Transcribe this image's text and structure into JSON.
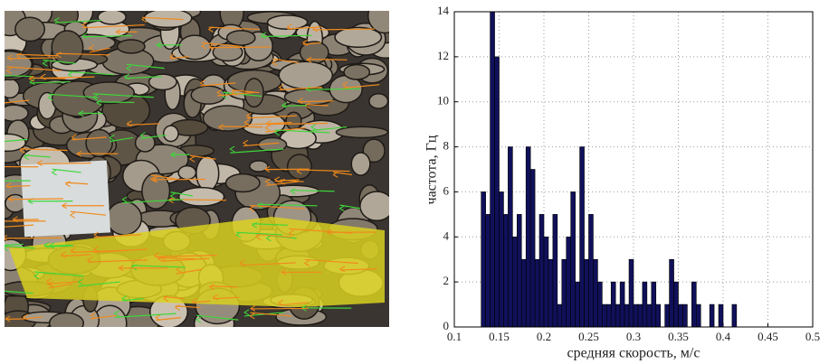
{
  "chart_data": {
    "type": "histogram",
    "xlabel": "средняя скорость, м/с",
    "ylabel": "частота, Гц",
    "color": "#10105a",
    "edgecolor": "#000000",
    "grid": true,
    "bins": [
      0.13,
      0.135,
      0.14,
      0.145,
      0.15,
      0.155,
      0.16,
      0.165,
      0.17,
      0.175,
      0.18,
      0.185,
      0.19,
      0.195,
      0.2,
      0.205,
      0.21,
      0.215,
      0.22,
      0.225,
      0.23,
      0.235,
      0.24,
      0.245,
      0.25,
      0.255,
      0.26,
      0.265,
      0.27,
      0.275,
      0.28,
      0.285,
      0.29,
      0.295,
      0.3,
      0.305,
      0.31,
      0.315,
      0.32,
      0.325,
      0.33,
      0.335,
      0.34,
      0.345,
      0.35,
      0.355,
      0.36,
      0.365,
      0.37,
      0.375,
      0.38,
      0.385,
      0.39,
      0.395,
      0.4,
      0.405,
      0.41,
      0.415
    ],
    "values": [
      6,
      5,
      14,
      12,
      6,
      5,
      8,
      4,
      5,
      3,
      8,
      7,
      3,
      5,
      4,
      3,
      5,
      1,
      3,
      4,
      6,
      2,
      8,
      3,
      5,
      3,
      2,
      1,
      1,
      2,
      1,
      2,
      1,
      3,
      1,
      1,
      2,
      1,
      2,
      1,
      0,
      1,
      3,
      2,
      1,
      1,
      0,
      2,
      1,
      0,
      0,
      1,
      0,
      1,
      0,
      0,
      1
    ],
    "xlim": [
      0.1,
      0.5
    ],
    "ylim": [
      0,
      14
    ],
    "xticks": [
      0.1,
      0.15,
      0.2,
      0.25,
      0.3,
      0.35,
      0.4,
      0.45,
      0.5
    ],
    "yticks": [
      0,
      2,
      4,
      6,
      8,
      10,
      12,
      14
    ]
  }
}
